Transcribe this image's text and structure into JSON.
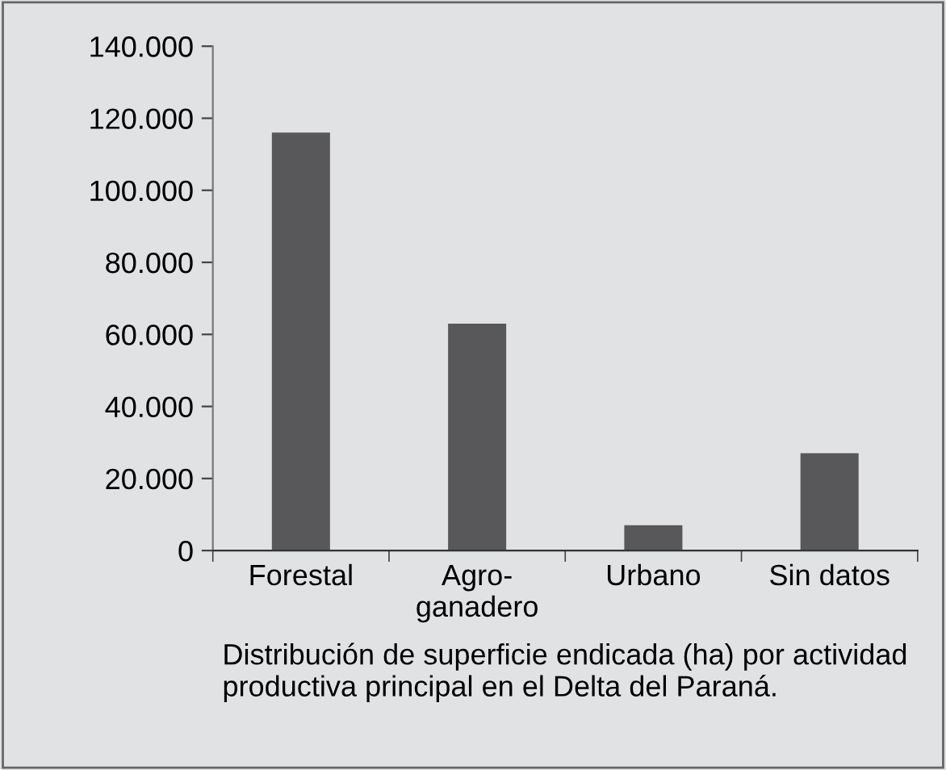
{
  "chart_data": {
    "type": "bar",
    "categories": [
      "Forestal",
      "Agro-\nganadero",
      "Urbano",
      "Sin datos"
    ],
    "values": [
      116000,
      63000,
      7000,
      27000
    ],
    "color": "#58585a",
    "ylim": [
      0,
      140000
    ],
    "yticks": [
      {
        "value": 0,
        "label": "0"
      },
      {
        "value": 20000,
        "label": "20.000"
      },
      {
        "value": 40000,
        "label": "40.000"
      },
      {
        "value": 60000,
        "label": "60.000"
      },
      {
        "value": 80000,
        "label": "80.000"
      },
      {
        "value": 100000,
        "label": "100.000"
      },
      {
        "value": 120000,
        "label": "120.000"
      },
      {
        "value": 140000,
        "label": "140.000"
      }
    ],
    "grid": false,
    "annotations": [
      "Distribución de superficie endicada (ha) por actividad productiva principal en el Delta del Paraná."
    ]
  }
}
